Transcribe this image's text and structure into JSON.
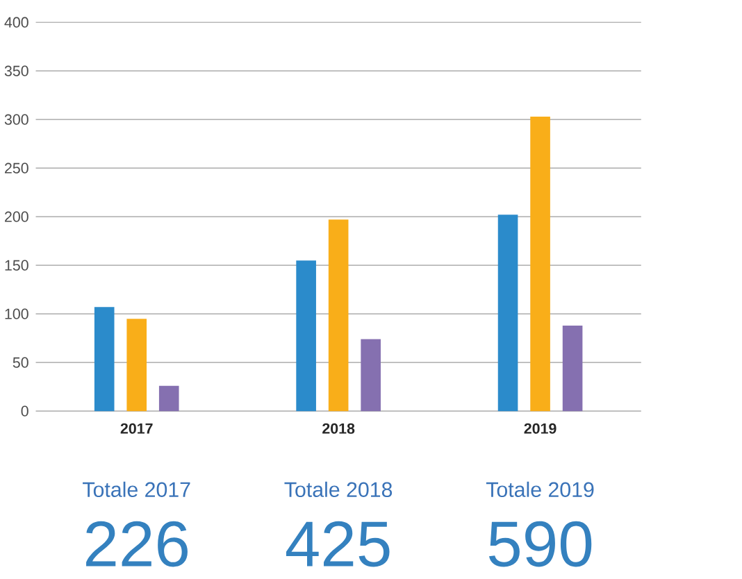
{
  "chart_data": {
    "type": "bar",
    "categories": [
      "2017",
      "2018",
      "2019"
    ],
    "series": [
      {
        "color": "#2b8bcb",
        "values": [
          107,
          155,
          202
        ]
      },
      {
        "color": "#f9ae19",
        "values": [
          95,
          197,
          303
        ]
      },
      {
        "color": "#8570b0",
        "values": [
          26,
          74,
          88
        ]
      }
    ],
    "ylim": [
      0,
      400
    ],
    "yticks": [
      0,
      50,
      100,
      150,
      200,
      250,
      300,
      350,
      400
    ],
    "grid": "y",
    "annotations": [
      "Totale 2017",
      "226",
      "Totale 2018",
      "425",
      "Totale 2019",
      "590"
    ]
  }
}
